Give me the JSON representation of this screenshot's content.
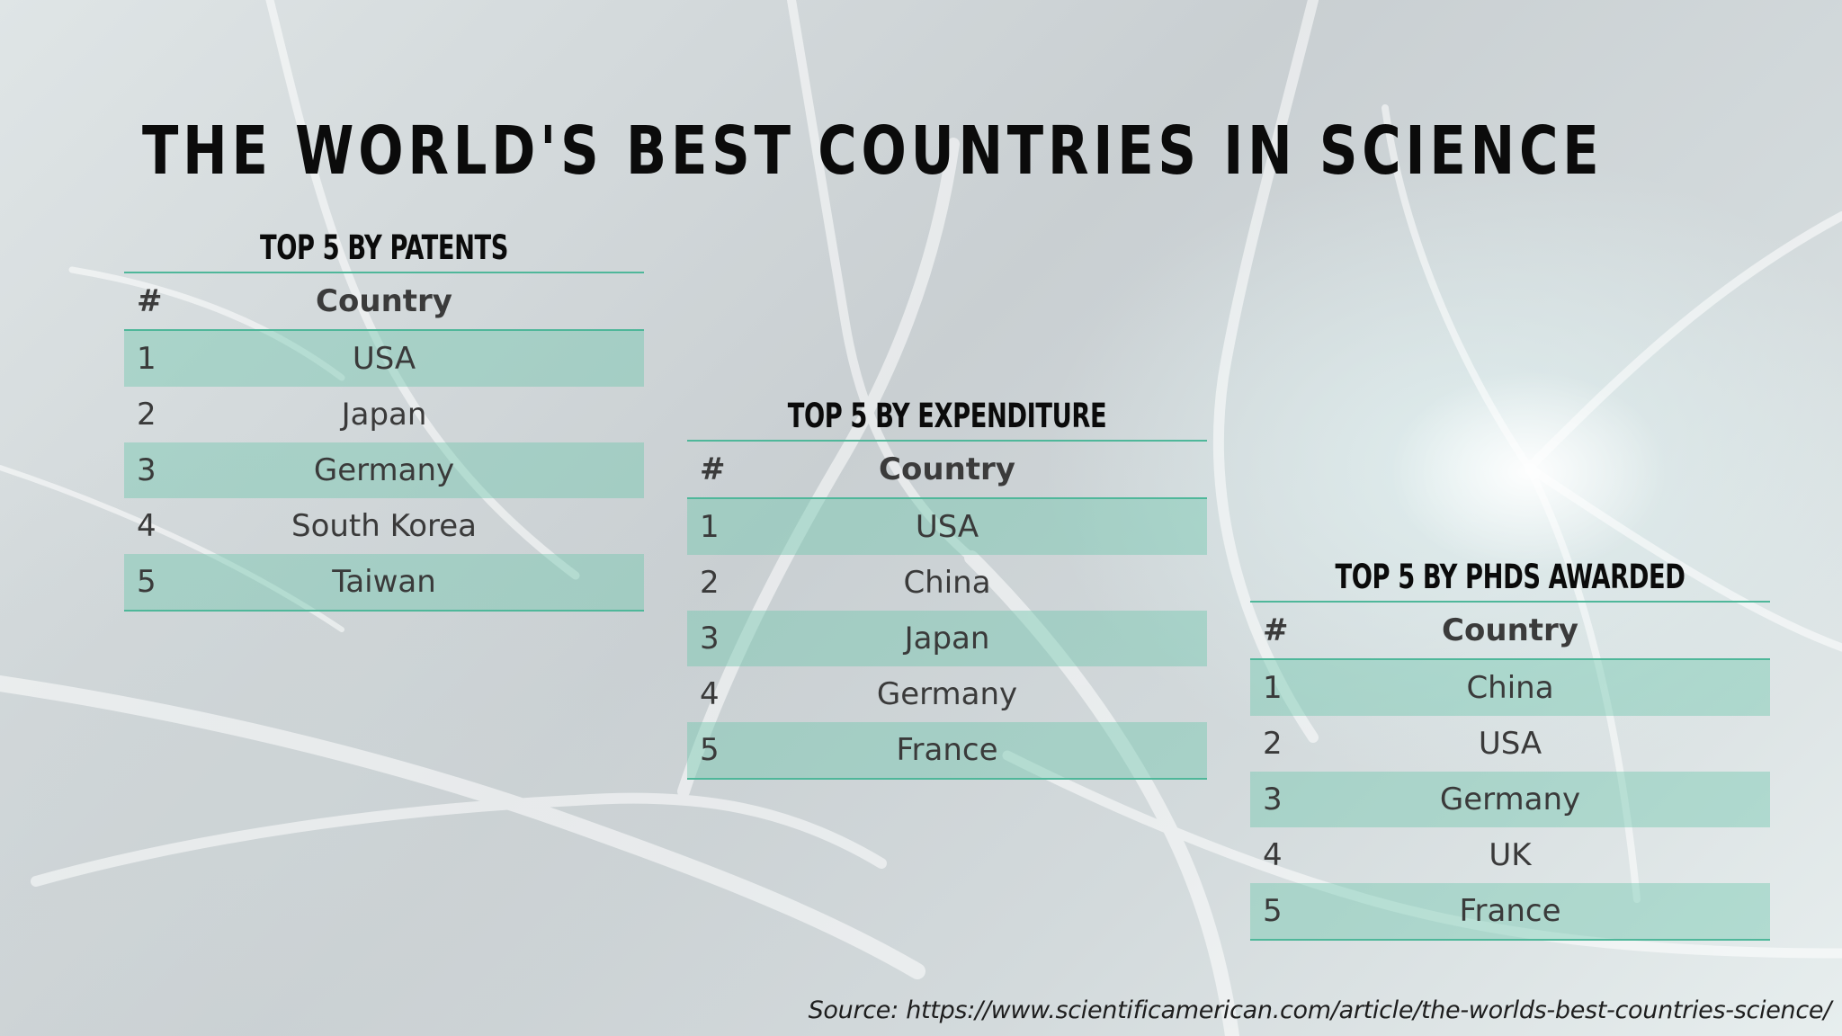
{
  "title": "THE WORLD'S BEST COUNTRIES IN SCIENCE",
  "tables": [
    {
      "title": "TOP 5 BY PATENTS",
      "header": {
        "rank": "#",
        "country": "Country"
      },
      "rows": [
        {
          "rank": "1",
          "country": "USA"
        },
        {
          "rank": "2",
          "country": "Japan"
        },
        {
          "rank": "3",
          "country": "Germany"
        },
        {
          "rank": "4",
          "country": "South Korea"
        },
        {
          "rank": "5",
          "country": "Taiwan"
        }
      ]
    },
    {
      "title": "TOP 5 BY EXPENDITURE",
      "header": {
        "rank": "#",
        "country": "Country"
      },
      "rows": [
        {
          "rank": "1",
          "country": "USA"
        },
        {
          "rank": "2",
          "country": "China"
        },
        {
          "rank": "3",
          "country": "Japan"
        },
        {
          "rank": "4",
          "country": "Germany"
        },
        {
          "rank": "5",
          "country": "France"
        }
      ]
    },
    {
      "title": "TOP 5 BY PHDS AWARDED",
      "header": {
        "rank": "#",
        "country": "Country"
      },
      "rows": [
        {
          "rank": "1",
          "country": "China"
        },
        {
          "rank": "2",
          "country": "USA"
        },
        {
          "rank": "3",
          "country": "Germany"
        },
        {
          "rank": "4",
          "country": "UK"
        },
        {
          "rank": "5",
          "country": "France"
        }
      ]
    }
  ],
  "source": {
    "label": "Source:",
    "url": "https://www.scientificamerican.com/article/the-worlds-best-countries-science/"
  },
  "colors": {
    "accent": "#4fb79a",
    "row_highlight": "#6cc5ac"
  }
}
